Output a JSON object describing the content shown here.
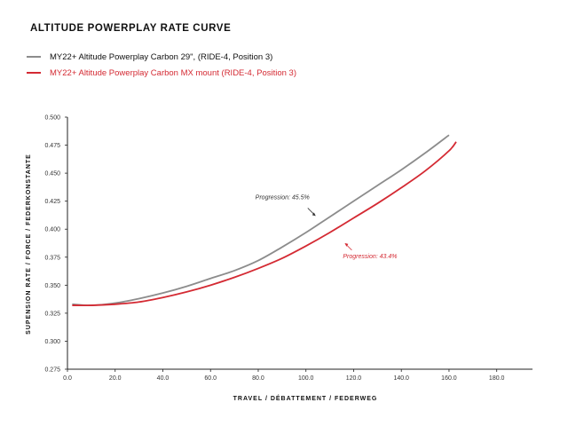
{
  "chart_data": {
    "type": "line",
    "title": "ALTITUDE POWERPLAY RATE CURVE",
    "xlabel": "TRAVEL   /   DÉBATTEMENT   /   FEDERWEG",
    "ylabel": "SUPENSION RATE   /   FORCE   /   FEDERKONSTANTE",
    "xlim": [
      0,
      195
    ],
    "ylim": [
      0.275,
      0.5
    ],
    "xticks": [
      0,
      20,
      40,
      60,
      80,
      100,
      120,
      140,
      160,
      180
    ],
    "xtick_labels": [
      "0.0",
      "20.0",
      "40.0",
      "60.0",
      "80.0",
      "100.0",
      "120.0",
      "140.0",
      "160.0",
      "180.0"
    ],
    "yticks": [
      0.275,
      0.3,
      0.325,
      0.35,
      0.375,
      0.4,
      0.425,
      0.45,
      0.475,
      0.5
    ],
    "ytick_labels": [
      "0.275",
      "0.300",
      "0.325",
      "0.350",
      "0.375",
      "0.400",
      "0.425",
      "0.450",
      "0.475",
      "0.500"
    ],
    "grid": false,
    "series": [
      {
        "name": "MY22+ Altitude Powerplay Carbon 29\", (RIDE-4, Position 3)",
        "color": "#8c8c8c",
        "x": [
          2,
          10,
          20,
          30,
          40,
          50,
          60,
          70,
          80,
          90,
          100,
          110,
          120,
          130,
          140,
          150,
          160
        ],
        "y": [
          0.333,
          0.332,
          0.334,
          0.338,
          0.343,
          0.349,
          0.356,
          0.363,
          0.372,
          0.384,
          0.397,
          0.411,
          0.425,
          0.439,
          0.453,
          0.468,
          0.484
        ]
      },
      {
        "name": "MY22+ Altitude Powerplay Carbon MX mount (RIDE-4, Position 3)",
        "color": "#d42a33",
        "x": [
          2,
          10,
          20,
          30,
          40,
          50,
          60,
          70,
          80,
          90,
          100,
          110,
          120,
          130,
          140,
          150,
          160,
          163
        ],
        "y": [
          0.332,
          0.332,
          0.333,
          0.335,
          0.339,
          0.344,
          0.35,
          0.357,
          0.365,
          0.374,
          0.385,
          0.397,
          0.41,
          0.423,
          0.437,
          0.452,
          0.47,
          0.478
        ]
      }
    ],
    "annotations": [
      {
        "text": "Progression: 45.5%",
        "color": "#333333",
        "series": 0
      },
      {
        "text": "Progression: 43.4%",
        "color": "#d42a33",
        "series": 1
      }
    ]
  }
}
